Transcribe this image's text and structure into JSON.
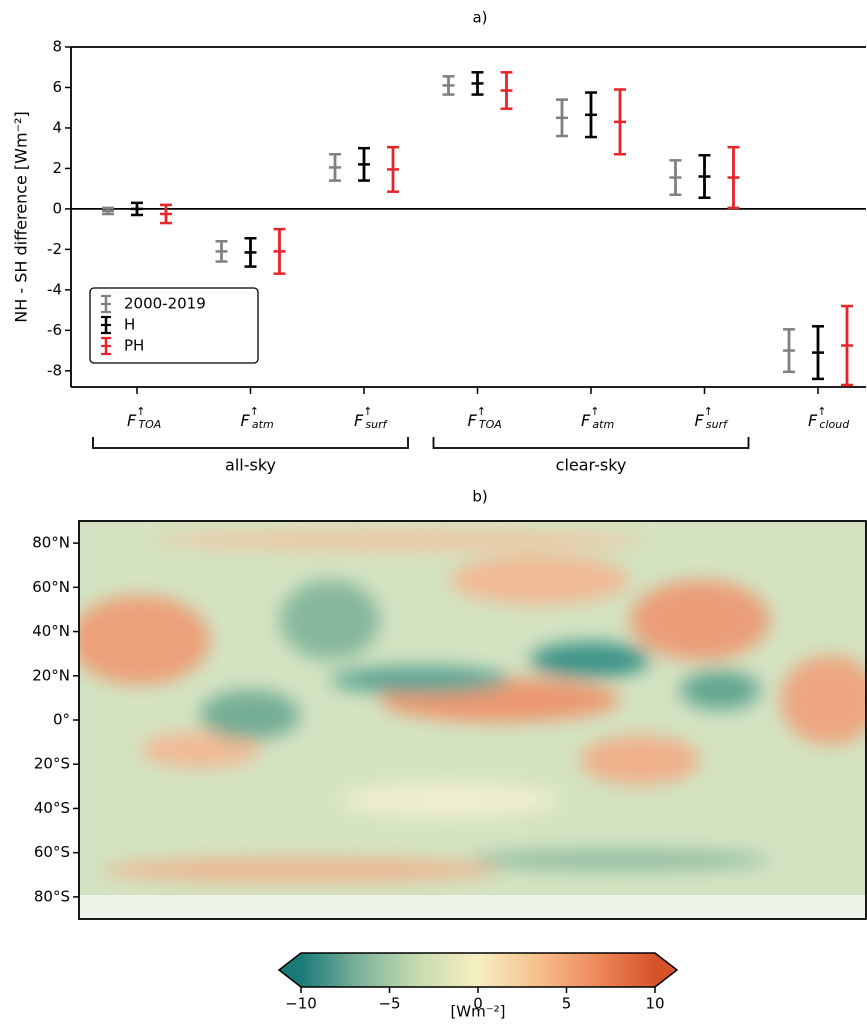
{
  "chart_data": [
    {
      "type": "errorbar",
      "title": "a)",
      "ylabel": "NH - SH difference [Wm⁻²]",
      "categories": [
        {
          "base": "F",
          "sup": "↑",
          "sub": "TOA"
        },
        {
          "base": "F",
          "sup": "↑",
          "sub": "atm"
        },
        {
          "base": "F",
          "sup": "↑",
          "sub": "surf"
        },
        {
          "base": "F",
          "sup": "↑",
          "sub": "TOA"
        },
        {
          "base": "F",
          "sup": "↑",
          "sub": "atm"
        },
        {
          "base": "F",
          "sup": "↑",
          "sub": "surf"
        },
        {
          "base": "F",
          "sup": "↑",
          "sub": "cloud"
        }
      ],
      "groups": [
        "all-sky",
        "clear-sky"
      ],
      "series": [
        {
          "name": "2000-2019",
          "color": "#808080",
          "values": [
            -0.1,
            -2.1,
            2.05,
            6.1,
            4.5,
            1.55,
            -7.0
          ],
          "errors": [
            0.15,
            0.5,
            0.65,
            0.45,
            0.9,
            0.85,
            1.05
          ]
        },
        {
          "name": "H",
          "color": "#000000",
          "values": [
            0.0,
            -2.15,
            2.2,
            6.2,
            4.65,
            1.6,
            -7.1
          ],
          "errors": [
            0.3,
            0.7,
            0.8,
            0.55,
            1.1,
            1.05,
            1.3
          ]
        },
        {
          "name": "PH",
          "color": "#e8242a",
          "values": [
            -0.25,
            -2.1,
            1.95,
            5.85,
            4.3,
            1.55,
            -6.75
          ],
          "errors": [
            0.45,
            1.1,
            1.1,
            0.9,
            1.6,
            1.5,
            1.95
          ]
        }
      ],
      "ylim": [
        -8.8,
        8
      ],
      "yticks": [
        -8,
        -6,
        -4,
        -2,
        0,
        2,
        4,
        6,
        8
      ],
      "legend": "lower left"
    },
    {
      "type": "map",
      "title": "b)",
      "ylim": [
        -90,
        90
      ],
      "yticks": [
        {
          "value": 80,
          "label": "80°N"
        },
        {
          "value": 60,
          "label": "60°N"
        },
        {
          "value": 40,
          "label": "40°N"
        },
        {
          "value": 20,
          "label": "20°N"
        },
        {
          "value": 0,
          "label": "0°"
        },
        {
          "value": -20,
          "label": "20°S"
        },
        {
          "value": -40,
          "label": "40°S"
        },
        {
          "value": -60,
          "label": "60°S"
        },
        {
          "value": -80,
          "label": "80°S"
        }
      ],
      "colorbar": {
        "label": "[Wm⁻²]",
        "lim": [
          -10,
          10
        ],
        "colors": [
          "#1a7a78",
          "#7fb39a",
          "#c8dcb0",
          "#f7efc2",
          "#f6c08e",
          "#ee8a5c",
          "#d6532a"
        ],
        "ticks": [
          {
            "value": -10,
            "label": "−10"
          },
          {
            "value": -5,
            "label": "−5"
          },
          0,
          5,
          10
        ]
      }
    }
  ]
}
